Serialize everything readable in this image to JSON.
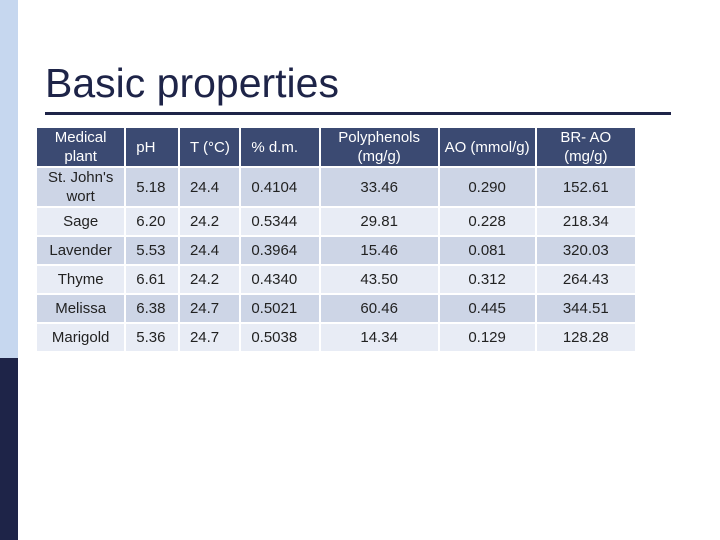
{
  "title": "Basic properties",
  "table": {
    "headers": [
      "Medical plant",
      "pH",
      "T (°C)",
      "% d.m.",
      "Polyphenols (mg/g)",
      "AO (mmol/g)",
      "BR- AO (mg/g)"
    ],
    "rows": [
      [
        "St. John's wort",
        "5.18",
        "24.4",
        "0.4104",
        "33.46",
        "0.290",
        "152.61"
      ],
      [
        "Sage",
        "6.20",
        "24.2",
        "0.5344",
        "29.81",
        "0.228",
        "218.34"
      ],
      [
        "Lavender",
        "5.53",
        "24.4",
        "0.3964",
        "15.46",
        "0.081",
        "320.03"
      ],
      [
        "Thyme",
        "6.61",
        "24.2",
        "0.4340",
        "43.50",
        "0.312",
        "264.43"
      ],
      [
        "Melissa",
        "6.38",
        "24.7",
        "0.5021",
        "60.46",
        "0.445",
        "344.51"
      ],
      [
        "Marigold",
        "5.36",
        "24.7",
        "0.5038",
        "14.34",
        "0.129",
        "128.28"
      ]
    ]
  },
  "colors": {
    "header_bg": "#3b4a72",
    "row_dark": "#cdd5e6",
    "row_light": "#e8ecf5",
    "accent_dark": "#1e2448",
    "accent_light": "#c6d7ef"
  }
}
